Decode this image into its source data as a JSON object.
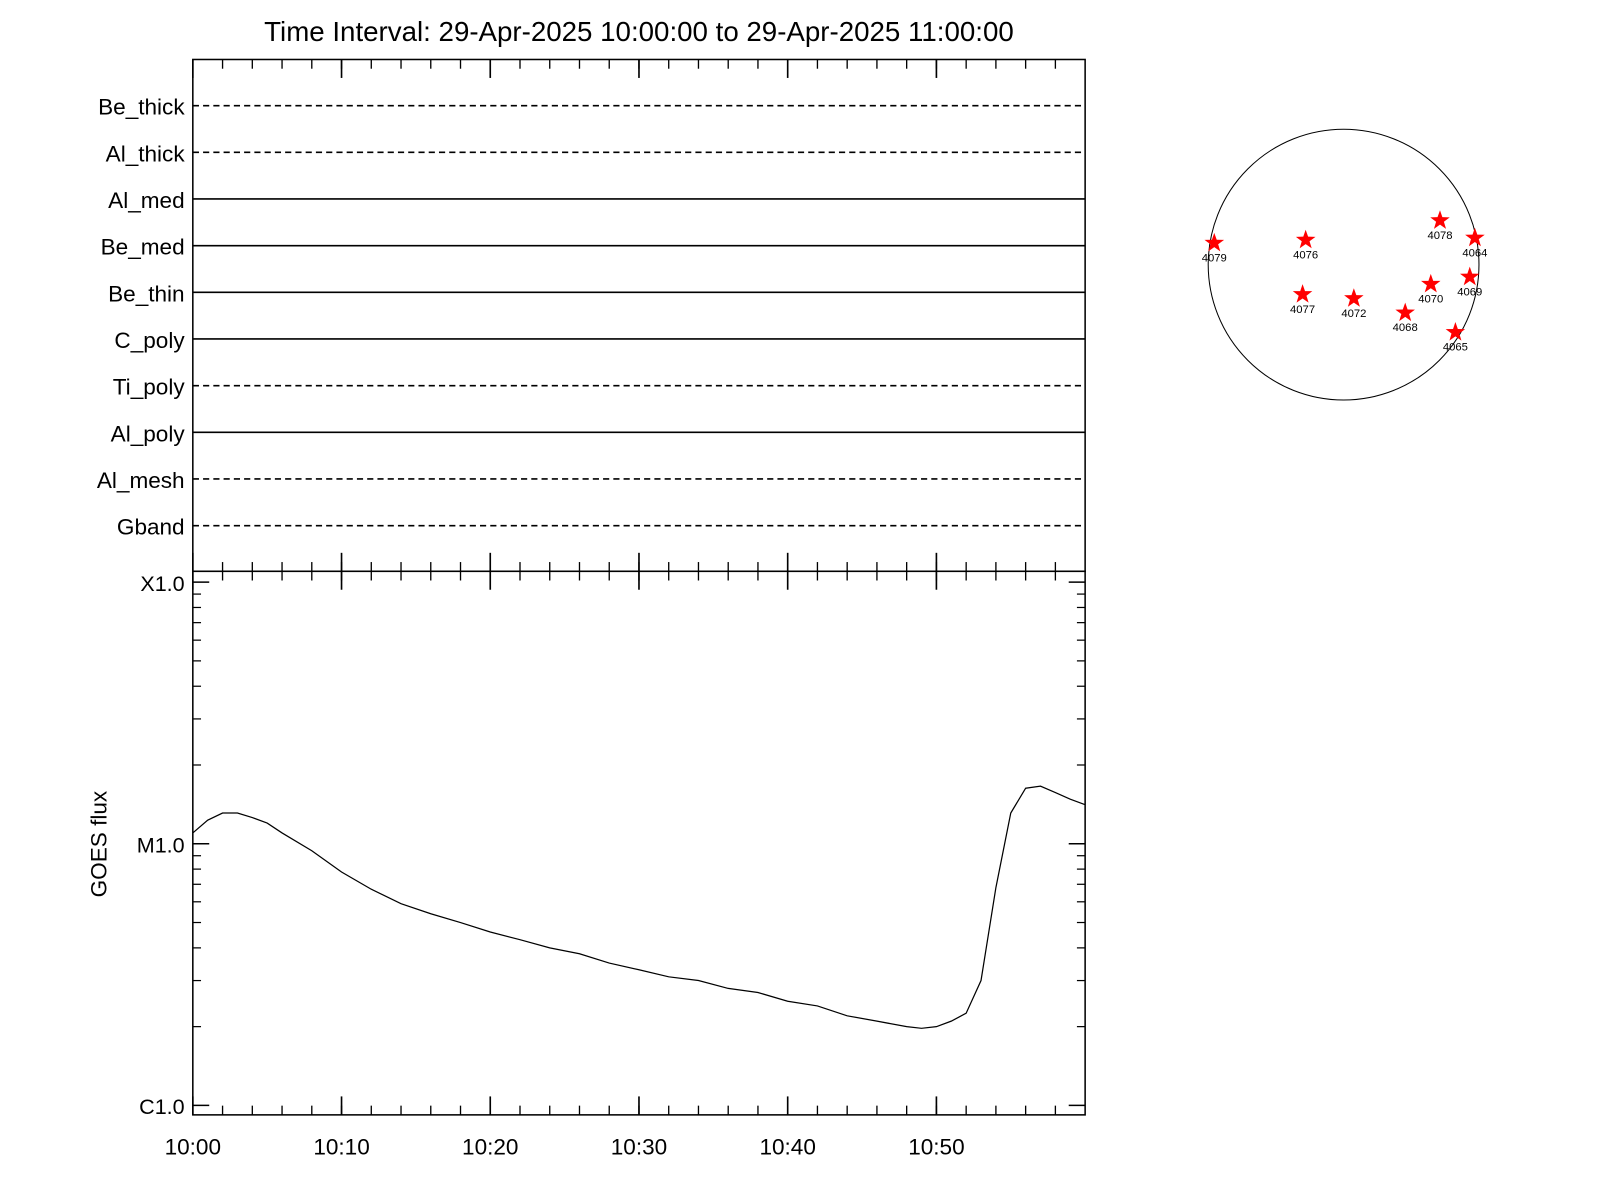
{
  "title": "Time Interval: 29-Apr-2025 10:00:00 to 29-Apr-2025 11:00:00",
  "chart_data": [
    {
      "type": "filter-status",
      "rows": [
        {
          "name": "Be_thick",
          "style": "dashed"
        },
        {
          "name": "Al_thick",
          "style": "dashed"
        },
        {
          "name": "Al_med",
          "style": "solid"
        },
        {
          "name": "Be_med",
          "style": "solid"
        },
        {
          "name": "Be_thin",
          "style": "solid"
        },
        {
          "name": "C_poly",
          "style": "solid"
        },
        {
          "name": "Ti_poly",
          "style": "dashed"
        },
        {
          "name": "Al_poly",
          "style": "solid"
        },
        {
          "name": "Al_mesh",
          "style": "dashed"
        },
        {
          "name": "Gband",
          "style": "dashed"
        }
      ]
    },
    {
      "type": "line",
      "y_label": "GOES flux",
      "color": "#000000",
      "log_scale": true,
      "x": [
        "10:00",
        "10:01",
        "10:02",
        "10:03",
        "10:04",
        "10:05",
        "10:06",
        "10:08",
        "10:10",
        "10:12",
        "10:14",
        "10:16",
        "10:18",
        "10:20",
        "10:22",
        "10:24",
        "10:26",
        "10:28",
        "10:30",
        "10:32",
        "10:34",
        "10:36",
        "10:38",
        "10:40",
        "10:42",
        "10:44",
        "10:46",
        "10:48",
        "10:49",
        "10:50",
        "10:51",
        "10:52",
        "10:53",
        "10:54",
        "10:55",
        "10:56",
        "10:57",
        "10:58",
        "10:59",
        "11:00"
      ],
      "values": [
        1.1e-05,
        1.23e-05,
        1.31e-05,
        1.31e-05,
        1.26e-05,
        1.2e-05,
        1.1e-05,
        9.4e-06,
        7.8e-06,
        6.7e-06,
        5.9e-06,
        5.4e-06,
        5e-06,
        4.6e-06,
        4.3e-06,
        4e-06,
        3.8e-06,
        3.5e-06,
        3.3e-06,
        3.1e-06,
        3e-06,
        2.8e-06,
        2.7e-06,
        2.5e-06,
        2.4e-06,
        2.2e-06,
        2.1e-06,
        2e-06,
        1.97e-06,
        2e-06,
        2.1e-06,
        2.25e-06,
        3e-06,
        6.8e-06,
        1.31e-05,
        1.63e-05,
        1.66e-05,
        1.57e-05,
        1.48e-05,
        1.41e-05
      ],
      "xlim": [
        "10:00",
        "11:00"
      ],
      "xticks": [
        "10:00",
        "10:10",
        "10:20",
        "10:30",
        "10:40",
        "10:50"
      ],
      "ylim": [
        9.2e-07,
        0.00011
      ],
      "yticks": [
        {
          "value": 1e-06,
          "label": "C1.0"
        },
        {
          "value": 1e-05,
          "label": "M1.0"
        },
        {
          "value": 0.0001,
          "label": "X1.0"
        }
      ]
    },
    {
      "type": "scatter",
      "color": "#ff0000",
      "xlim": [
        -1,
        1
      ],
      "ylim": [
        -1,
        1
      ],
      "points": [
        {
          "label": "4079",
          "x": -0.955,
          "y": 0.159
        },
        {
          "label": "4076",
          "x": -0.28,
          "y": 0.182
        },
        {
          "label": "4078",
          "x": 0.712,
          "y": 0.326
        },
        {
          "label": "4064",
          "x": 0.97,
          "y": 0.197
        },
        {
          "label": "4077",
          "x": -0.303,
          "y": -0.22
        },
        {
          "label": "4072",
          "x": 0.076,
          "y": -0.25
        },
        {
          "label": "4070",
          "x": 0.644,
          "y": -0.144
        },
        {
          "label": "4069",
          "x": 0.932,
          "y": -0.091
        },
        {
          "label": "4068",
          "x": 0.455,
          "y": -0.356
        },
        {
          "label": "4065",
          "x": 0.826,
          "y": -0.5
        }
      ]
    }
  ]
}
